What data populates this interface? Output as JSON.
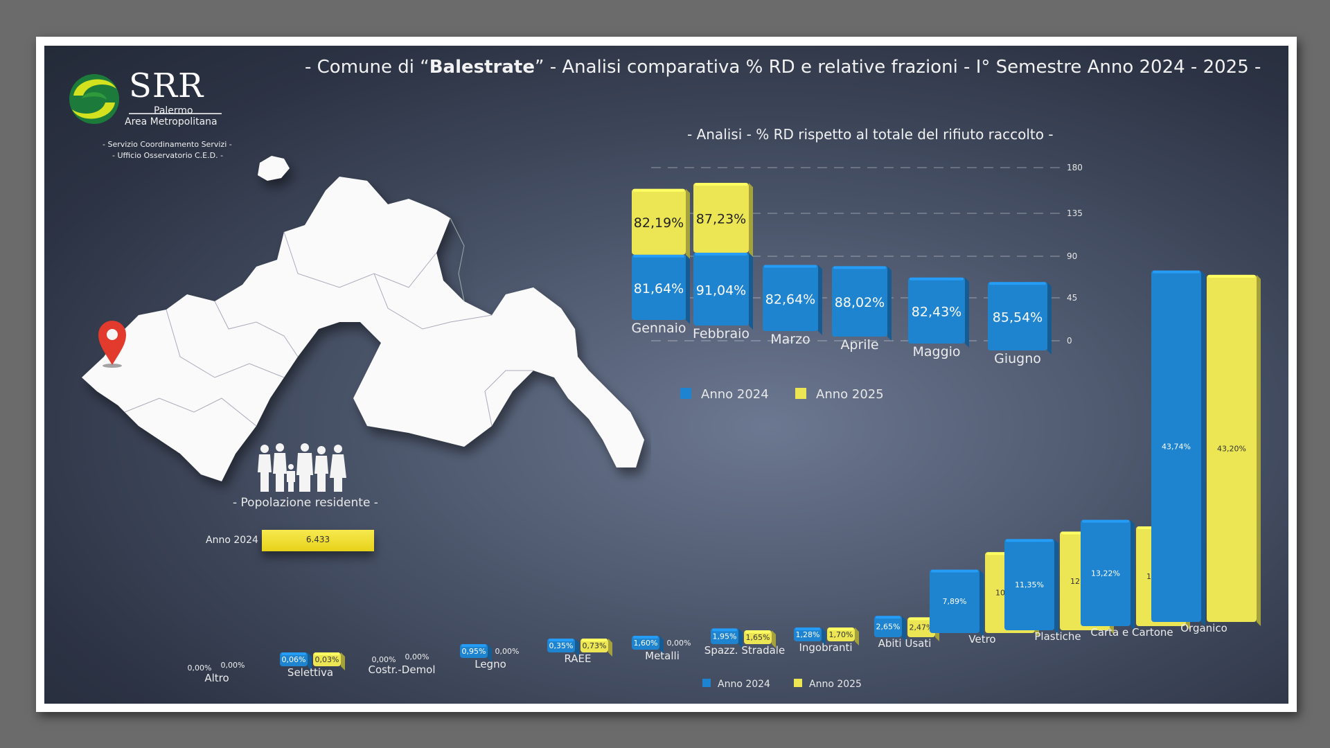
{
  "header": {
    "title_prefix": "- Comune di “",
    "title_bold": "Balestrate",
    "title_suffix": "” - Analisi comparativa % RD e relative frazioni - I° Semestre Anno 2024 - 2025 -"
  },
  "logo": {
    "name": "SRR",
    "line1": "Palermo",
    "line2": "Area Metropolitana",
    "note1": "- Servizio Coordinamento Servizi -",
    "note2": "- Ufficio Osservatorio C.E.D. -"
  },
  "population": {
    "label": "- Popolazione residente -",
    "year": "Anno 2024",
    "value": "6.433"
  },
  "colors": {
    "blue": "#1f84d0",
    "yellow": "#ece655"
  },
  "chart_data": [
    {
      "type": "bar",
      "title": "- Analisi - % RD rispetto al totale del rifiuto raccolto -",
      "categories": [
        "Gennaio",
        "Febbraio",
        "Marzo",
        "Aprile",
        "Maggio",
        "Giugno"
      ],
      "stacked": true,
      "series": [
        {
          "name": "Anno 2024",
          "values": [
            81.64,
            91.04,
            82.64,
            88.02,
            82.43,
            85.54
          ],
          "labels": [
            "81,64%",
            "91,04%",
            "82,64%",
            "88,02%",
            "82,43%",
            "85,54%"
          ]
        },
        {
          "name": "Anno 2025",
          "values": [
            82.19,
            87.23,
            null,
            null,
            null,
            null
          ],
          "labels": [
            "82,19%",
            "87,23%",
            "",
            "",
            "",
            ""
          ]
        }
      ],
      "yticks": [
        "0",
        "45",
        "90",
        "135",
        "180"
      ],
      "ylim": [
        0,
        180
      ],
      "legend": "bottom"
    },
    {
      "type": "bar",
      "categories": [
        "Altro",
        "Selettiva",
        "Costr.-Demol",
        "Legno",
        "RAEE",
        "Metalli",
        "Spazz. Stradale",
        "Ingobranti",
        "Abiti Usati",
        "Vetro",
        "Plastiche",
        "Carta e Cartone",
        "Organico"
      ],
      "series": [
        {
          "name": "Anno 2024",
          "values": [
            0.0,
            0.06,
            0.0,
            0.95,
            0.35,
            1.6,
            1.95,
            1.28,
            2.65,
            7.89,
            11.35,
            13.22,
            43.74
          ],
          "labels": [
            "0,00%",
            "0,06%",
            "0,00%",
            "0,95%",
            "0,35%",
            "1,60%",
            "1,95%",
            "1,28%",
            "2,65%",
            "7,89%",
            "11,35%",
            "13,22%",
            "43,74%"
          ]
        },
        {
          "name": "Anno 2025",
          "values": [
            0.0,
            0.03,
            0.0,
            0.0,
            0.73,
            0.0,
            1.65,
            1.7,
            2.47,
            10.06,
            12.28,
            12.41,
            43.2
          ],
          "labels": [
            "0,00%",
            "0,03%",
            "0,00%",
            "0,00%",
            "0,73%",
            "0,00%",
            "1,65%",
            "1,70%",
            "2,47%",
            "10,06%",
            "12,28%",
            "12,41%",
            "43,20%"
          ]
        }
      ],
      "legend": "bottom"
    }
  ]
}
